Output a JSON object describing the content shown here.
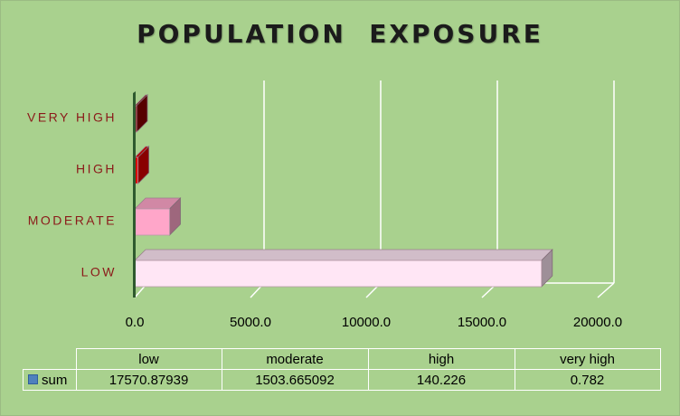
{
  "chart_data": {
    "type": "bar",
    "orientation": "horizontal",
    "title": "POPULATION  EXPOSURE",
    "categories": [
      "LOW",
      "MODERATE",
      "HIGH",
      "VERY HIGH"
    ],
    "table_headers": [
      "low",
      "moderate",
      "high",
      "very high"
    ],
    "series": [
      {
        "name": "sum",
        "values": [
          17570.87939,
          1503.665092,
          140.226,
          0.782
        ],
        "value_labels": [
          "17570.87939",
          "1503.665092",
          "140.226",
          "0.782"
        ],
        "bar_colors": [
          "#ffe6f5",
          "#ffa6c9",
          "#dd0000",
          "#8b0000"
        ]
      }
    ],
    "xlim": [
      0,
      20000
    ],
    "x_ticks": [
      0,
      5000,
      10000,
      15000,
      20000
    ],
    "x_tick_labels": [
      "0.0",
      "5000.0",
      "10000.0",
      "15000.0",
      "20000.0"
    ],
    "grid": true,
    "legend": "data-table",
    "colors": {
      "background": "#a9d18e",
      "label": "#8b1a1a",
      "legend_key": "#4f81bd"
    }
  }
}
